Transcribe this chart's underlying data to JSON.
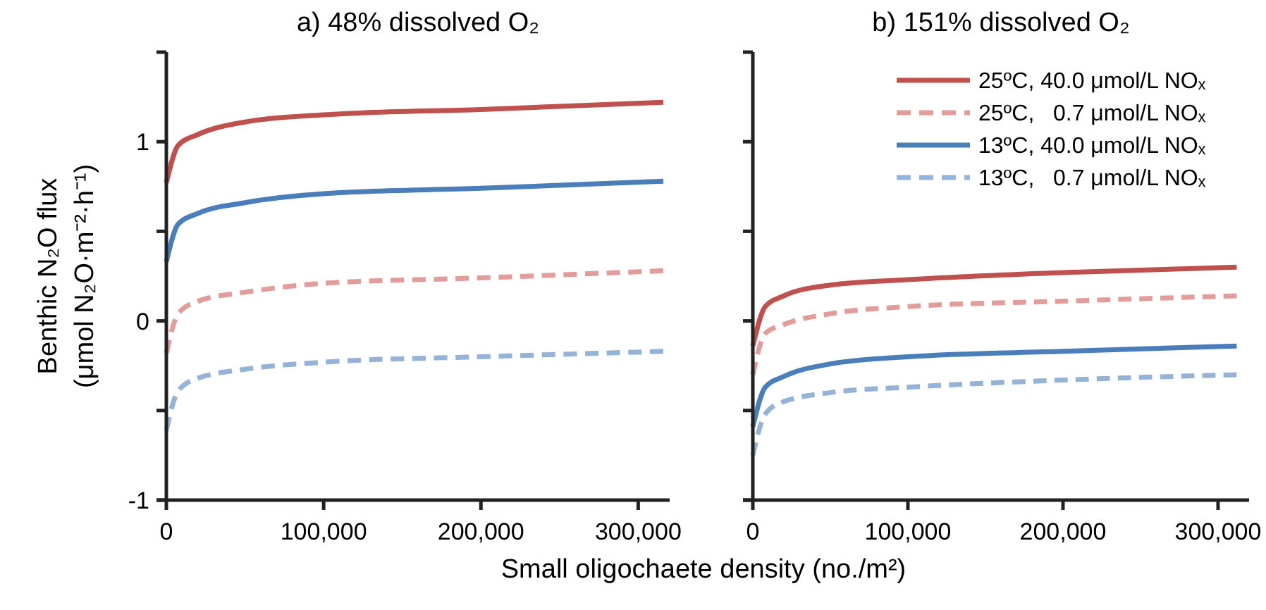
{
  "chart_data": [
    {
      "type": "line",
      "title": "a) 48% dissolved O₂",
      "xlabel": "Small oligochaete density (no./m²)",
      "ylabel": "Benthic N₂O flux\n(μmol N₂O·m⁻²·h⁻¹)",
      "xlim": [
        0,
        320000
      ],
      "xticks": [
        0,
        {
          "value": 100000,
          "label": "100,000"
        },
        {
          "value": 200000,
          "label": "200,000"
        },
        {
          "value": 300000,
          "label": "300,000"
        }
      ],
      "ylim": [
        -1,
        1.5
      ],
      "yticks": [
        -1,
        {
          "value": -0.5,
          "label": null
        },
        0,
        {
          "value": 0.5,
          "label": null
        },
        1,
        {
          "value": 1.5,
          "label": null
        }
      ],
      "grid": false,
      "legend": false,
      "marker": "none",
      "x": [
        0,
        7500,
        20000,
        50000,
        100000,
        200000,
        316000
      ],
      "series": [
        {
          "color": "#c0504d",
          "line_style": "solid",
          "values": [
            0.77,
            0.98,
            1.04,
            1.11,
            1.15,
            1.18,
            1.22
          ]
        },
        {
          "color": "#e29c9a",
          "line_style": "dashed",
          "values": [
            -0.18,
            0.04,
            0.11,
            0.16,
            0.21,
            0.24,
            0.28
          ]
        },
        {
          "color": "#4a7ebb",
          "line_style": "solid",
          "values": [
            0.33,
            0.54,
            0.6,
            0.66,
            0.71,
            0.74,
            0.78
          ]
        },
        {
          "color": "#95b3d7",
          "line_style": "dashed",
          "values": [
            -0.61,
            -0.39,
            -0.32,
            -0.27,
            -0.23,
            -0.2,
            -0.17
          ]
        }
      ]
    },
    {
      "type": "line",
      "title": "b) 151% dissolved O₂",
      "xlim": [
        0,
        320000
      ],
      "xticks": [
        0,
        {
          "value": 100000,
          "label": "100,000"
        },
        {
          "value": 200000,
          "label": "200,000"
        },
        {
          "value": 300000,
          "label": "300,000"
        }
      ],
      "ylim": [
        -1,
        1.5
      ],
      "yticks": [
        -1,
        -0.5,
        0,
        0.5,
        1,
        1.5
      ],
      "tick_labels": "x",
      "grid": false,
      "legend": "top right",
      "marker": "none",
      "x": [
        0,
        8000,
        20000,
        50000,
        100000,
        200000,
        312000
      ],
      "series": [
        {
          "name": "25ºC, 40.0 μmol/L NOₓ",
          "color": "#c0504d",
          "line_style": "solid",
          "values": [
            -0.14,
            0.08,
            0.14,
            0.2,
            0.23,
            0.27,
            0.3
          ]
        },
        {
          "name": "25ºC,   0.7 μmol/L NOₓ",
          "color": "#e29c9a",
          "line_style": "dashed",
          "values": [
            -0.3,
            -0.07,
            -0.02,
            0.04,
            0.08,
            0.11,
            0.14
          ]
        },
        {
          "name": "13ºC, 40.0 μmol/L NOₓ",
          "color": "#4a7ebb",
          "line_style": "solid",
          "values": [
            -0.59,
            -0.37,
            -0.31,
            -0.24,
            -0.2,
            -0.17,
            -0.14
          ]
        },
        {
          "name": "13ºC,   0.7 μmol/L NOₓ",
          "color": "#95b3d7",
          "line_style": "dashed",
          "values": [
            -0.75,
            -0.52,
            -0.45,
            -0.4,
            -0.37,
            -0.33,
            -0.3
          ]
        }
      ]
    }
  ]
}
